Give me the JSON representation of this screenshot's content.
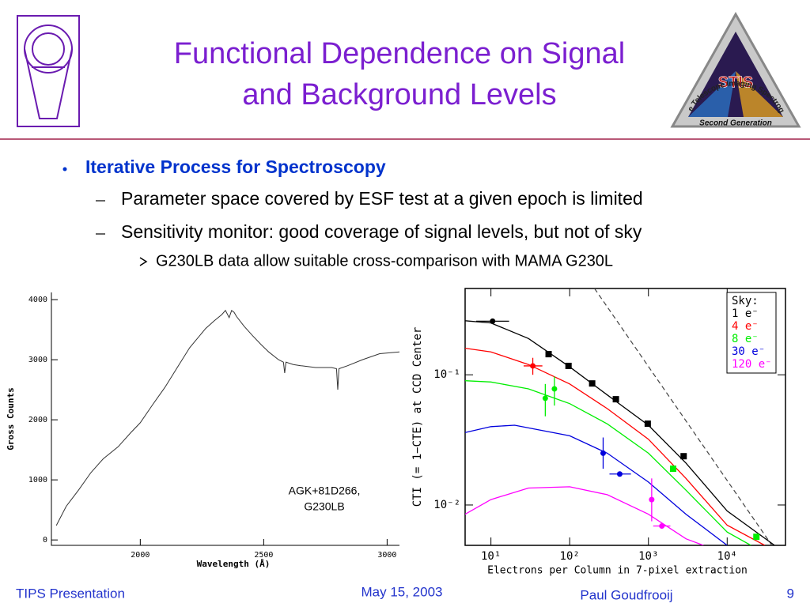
{
  "header": {
    "title": [
      "Functional Dependence on Signal",
      "and Background Levels"
    ]
  },
  "logo": {
    "top": "Space Telescope Imaging Spectrograph",
    "center": "STIS",
    "bottom": "Second Generation"
  },
  "bullets": [
    {
      "level": 1,
      "text": "Iterative Process for Spectroscopy"
    },
    {
      "level": 2,
      "text": "Parameter space covered by ESF test at a given epoch is limited"
    },
    {
      "level": 2,
      "text": "Sensitivity monitor: good coverage of signal levels, but not of sky"
    },
    {
      "level": 3,
      "text": "G230LB data allow suitable cross-comparison with MAMA G230L"
    }
  ],
  "charts": [
    {
      "type": "line",
      "xlabel": "Wavelength (Å)",
      "ylabel": "Gross Counts",
      "annotation": [
        "AGK+81D266,",
        "G230LB"
      ],
      "color": "#333333",
      "xlim": [
        1640,
        3050
      ],
      "ylim": [
        -90,
        4120
      ],
      "xticks": [
        2000,
        2500,
        3000
      ],
      "yticks": [
        0,
        1000,
        2000,
        3000,
        4000
      ],
      "x": [
        1660,
        1700,
        1750,
        1800,
        1850,
        1910,
        1960,
        2000,
        2050,
        2100,
        2150,
        2200,
        2265,
        2300,
        2330,
        2345,
        2360,
        2370,
        2380,
        2390,
        2420,
        2455,
        2490,
        2520,
        2560,
        2580,
        2585,
        2590,
        2620,
        2650,
        2710,
        2775,
        2795,
        2800,
        2805,
        2840,
        2900,
        2970,
        3050
      ],
      "y": [
        240,
        560,
        830,
        1120,
        1350,
        1550,
        1780,
        1950,
        2250,
        2540,
        2870,
        3200,
        3520,
        3650,
        3750,
        3820,
        3700,
        3820,
        3790,
        3720,
        3560,
        3400,
        3250,
        3130,
        3000,
        2960,
        2780,
        2960,
        2920,
        2900,
        2870,
        2870,
        2850,
        2500,
        2850,
        2900,
        3000,
        3100,
        3130
      ]
    },
    {
      "type": "scatter",
      "log_x": true,
      "log_y": true,
      "xlabel": "Electrons per Column in 7-pixel extraction",
      "ylabel": "CTI (= 1−CTE) at CCD Center",
      "legend_title": "Sky:",
      "legend": "upper right",
      "xlim": [
        4.7,
        55000
      ],
      "ylim": [
        0.0049,
        0.46
      ],
      "xticks": [
        {
          "value": 10,
          "label": "10¹"
        },
        {
          "value": 100,
          "label": "10²"
        },
        {
          "value": 1000,
          "label": "10³"
        },
        {
          "value": 10000,
          "label": "10⁴"
        }
      ],
      "yticks": [
        {
          "value": 0.1,
          "label": "10⁻¹"
        },
        {
          "value": 0.01,
          "label": "10⁻²"
        }
      ],
      "limit_line": {
        "x": [
          207,
          37000
        ],
        "y": [
          0.46,
          0.0049
        ],
        "color": "#444444"
      },
      "series": [
        {
          "name": "1 e⁻",
          "color": "#000000",
          "curve": {
            "x": [
              4.7,
              10,
              30,
              100,
              300,
              1000,
              3000,
              10000,
              40000
            ],
            "y": [
              0.26,
              0.25,
              0.19,
              0.115,
              0.07,
              0.041,
              0.021,
              0.009,
              0.0049
            ]
          },
          "points": [
            {
              "x": 10.5,
              "y": 0.258,
              "marker": "circle",
              "xerr": [
                6.5,
                17
              ]
            },
            {
              "x": 54,
              "y": 0.144,
              "marker": "square"
            },
            {
              "x": 96.6,
              "y": 0.117,
              "marker": "square"
            },
            {
              "x": 193,
              "y": 0.0858,
              "marker": "square"
            },
            {
              "x": 386,
              "y": 0.0649,
              "marker": "square"
            },
            {
              "x": 980,
              "y": 0.0421,
              "marker": "square"
            },
            {
              "x": 2800,
              "y": 0.0237,
              "marker": "square"
            }
          ]
        },
        {
          "name": "4 e⁻",
          "color": "#ff0000",
          "curve": {
            "x": [
              4.7,
              10,
              30,
              100,
              300,
              1000,
              3000,
              10000,
              30000
            ],
            "y": [
              0.16,
              0.15,
              0.12,
              0.085,
              0.055,
              0.032,
              0.016,
              0.007,
              0.0049
            ]
          },
          "points": [
            {
              "x": 34,
              "y": 0.117,
              "marker": "circle",
              "xerr": [
                26,
                45
              ],
              "yerr": [
                0.1,
                0.135
              ]
            }
          ]
        },
        {
          "name": "8 e⁻",
          "color": "#00ee00",
          "curve": {
            "x": [
              4.7,
              10,
              30,
              100,
              300,
              1000,
              3000,
              10000,
              20000
            ],
            "y": [
              0.09,
              0.088,
              0.078,
              0.06,
              0.042,
              0.025,
              0.013,
              0.0062,
              0.0049
            ]
          },
          "points": [
            {
              "x": 49,
              "y": 0.066,
              "marker": "circle",
              "yerr": [
                0.048,
                0.085
              ]
            },
            {
              "x": 64,
              "y": 0.078,
              "marker": "circle",
              "yerr": [
                0.058,
                0.097
              ]
            },
            {
              "x": 2060,
              "y": 0.019,
              "marker": "square"
            },
            {
              "x": 23500,
              "y": 0.0057,
              "marker": "square"
            }
          ]
        },
        {
          "name": "30 e⁻",
          "color": "#0000dd",
          "curve": {
            "x": [
              4.7,
              10,
              20,
              100,
              300,
              1000,
              3000,
              10000
            ],
            "y": [
              0.036,
              0.04,
              0.041,
              0.034,
              0.025,
              0.015,
              0.0085,
              0.0049
            ]
          },
          "points": [
            {
              "x": 266,
              "y": 0.025,
              "marker": "circle",
              "yerr": [
                0.019,
                0.033
              ]
            },
            {
              "x": 432,
              "y": 0.0173,
              "marker": "circle",
              "xerr": [
                320,
                600
              ]
            }
          ]
        },
        {
          "name": "120 e⁻",
          "color": "#ff00ff",
          "curve": {
            "x": [
              4.7,
              10,
              30,
              100,
              300,
              1000,
              3000,
              5000
            ],
            "y": [
              0.0085,
              0.011,
              0.0135,
              0.0138,
              0.012,
              0.0085,
              0.0055,
              0.0049
            ]
          },
          "points": [
            {
              "x": 1100,
              "y": 0.011,
              "marker": "circle",
              "yerr": [
                0.0075,
                0.016
              ]
            },
            {
              "x": 1480,
              "y": 0.0069,
              "marker": "circle",
              "xerr": [
                1150,
                1900
              ]
            }
          ]
        }
      ]
    }
  ],
  "footer": {
    "left": "TIPS Presentation",
    "center": "May 15, 2003",
    "author": "Paul Goudfrooij",
    "page": "9"
  }
}
